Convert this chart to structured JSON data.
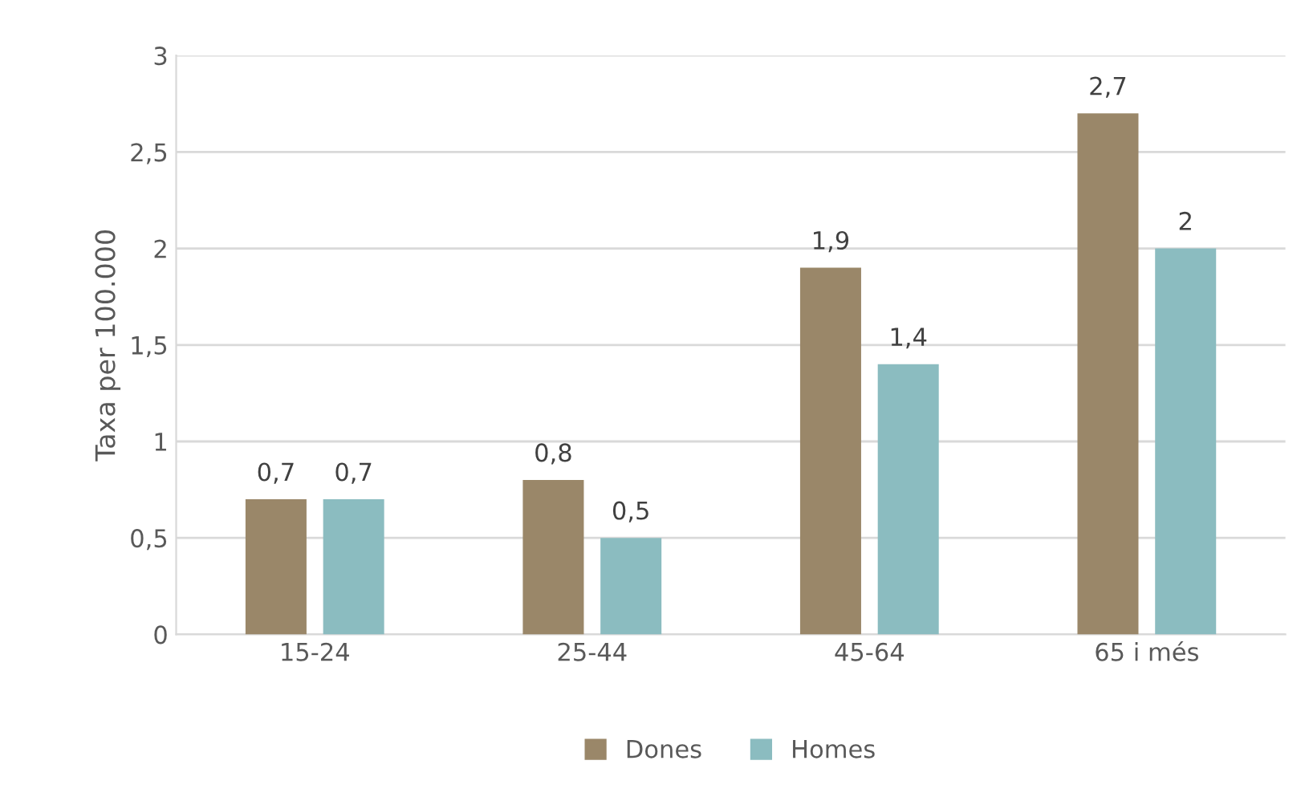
{
  "chart_data": {
    "type": "bar",
    "ylabel": "Taxa per 100.000",
    "categories": [
      "15-24",
      "25-44",
      "45-64",
      "65 i més"
    ],
    "series": [
      {
        "name": "Dones",
        "color": "#9a8769",
        "values": [
          0.7,
          0.8,
          1.9,
          2.7
        ],
        "value_labels": [
          "0,7",
          "0,8",
          "1,9",
          "2,7"
        ]
      },
      {
        "name": "Homes",
        "color": "#8bbcc0",
        "values": [
          0.7,
          0.5,
          1.4,
          2
        ],
        "value_labels": [
          "0,7",
          "0,5",
          "1,4",
          "2"
        ]
      }
    ],
    "ylim": [
      0,
      3
    ],
    "yticks": [
      0,
      {
        "value": 0.5,
        "label": "0,5"
      },
      1,
      {
        "value": 1.5,
        "label": "1,5"
      },
      2,
      {
        "value": 2.5,
        "label": "2,5"
      },
      3
    ],
    "grid": "y",
    "legend": "bottom"
  }
}
